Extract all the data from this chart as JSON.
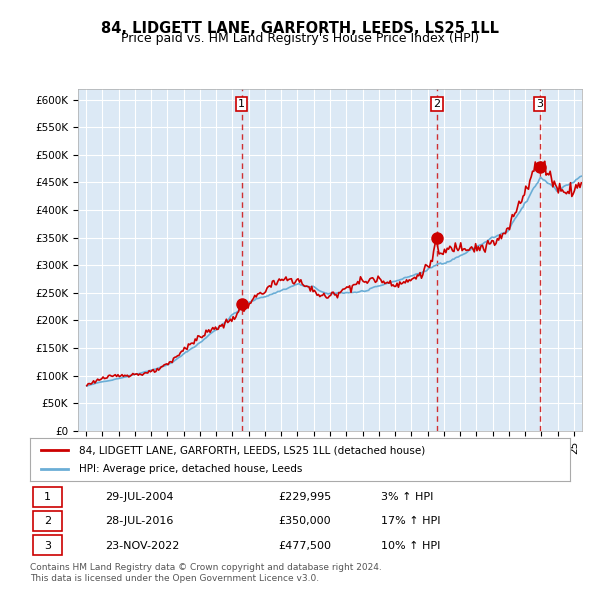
{
  "title": "84, LIDGETT LANE, GARFORTH, LEEDS, LS25 1LL",
  "subtitle": "Price paid vs. HM Land Registry's House Price Index (HPI)",
  "bg_color": "#dce9f5",
  "plot_bg_color": "#dce9f5",
  "hpi_color": "#6baed6",
  "price_color": "#cc0000",
  "ylim": [
    0,
    620000
  ],
  "yticks": [
    0,
    50000,
    100000,
    150000,
    200000,
    250000,
    300000,
    350000,
    400000,
    450000,
    500000,
    550000,
    600000
  ],
  "ytick_labels": [
    "£0",
    "£50K",
    "£100K",
    "£150K",
    "£200K",
    "£250K",
    "£300K",
    "£350K",
    "£400K",
    "£450K",
    "£500K",
    "£550K",
    "£600K"
  ],
  "transactions": [
    {
      "label": "1",
      "date": "29-JUL-2004",
      "price": 229995,
      "pct": "3%",
      "x_year": 2004.57
    },
    {
      "label": "2",
      "date": "28-JUL-2016",
      "price": 350000,
      "pct": "17%",
      "x_year": 2016.57
    },
    {
      "label": "3",
      "date": "23-NOV-2022",
      "price": 477500,
      "pct": "10%",
      "x_year": 2022.9
    }
  ],
  "legend_property": "84, LIDGETT LANE, GARFORTH, LEEDS, LS25 1LL (detached house)",
  "legend_hpi": "HPI: Average price, detached house, Leeds",
  "footer": "Contains HM Land Registry data © Crown copyright and database right 2024.\nThis data is licensed under the Open Government Licence v3.0.",
  "xlim_start": 1994.5,
  "xlim_end": 2025.5
}
